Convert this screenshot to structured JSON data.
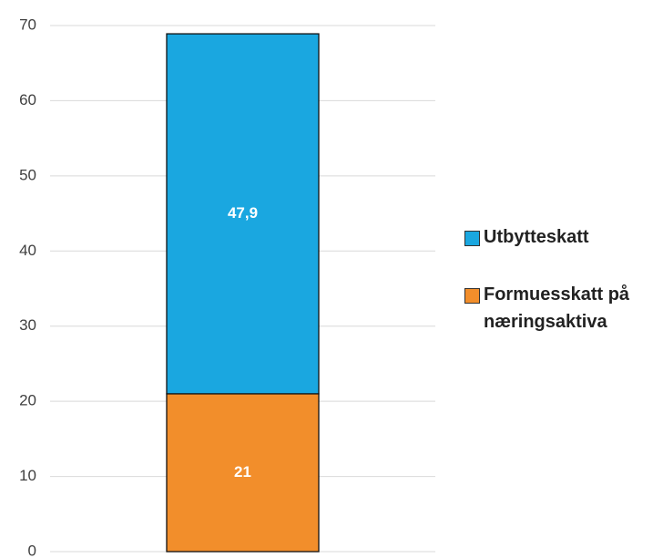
{
  "chart_data": {
    "type": "stacked_bar",
    "categories": [
      null
    ],
    "series": [
      {
        "name": "Formuesskatt på næringsaktiva",
        "color": "#f28e2b",
        "values": [
          21
        ]
      },
      {
        "name": "Utbytteskatt",
        "color": "#1aa7e0",
        "values": [
          47.9
        ],
        "value_labels": [
          "47,9"
        ]
      }
    ],
    "ylim": [
      0,
      70
    ],
    "yticks": [
      0,
      10,
      20,
      30,
      40,
      50,
      60,
      70
    ],
    "grid": true,
    "legend": "right"
  }
}
